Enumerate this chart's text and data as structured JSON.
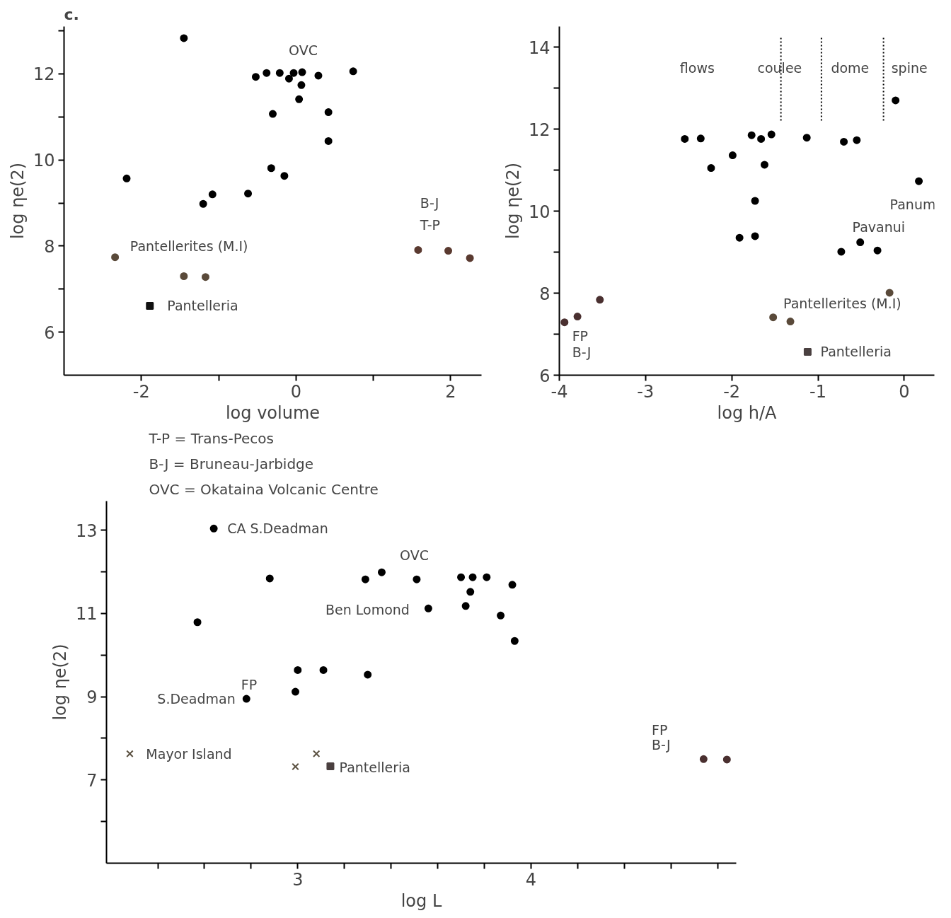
{
  "chart_data": [
    {
      "type": "scatter",
      "title": "c.",
      "xlabel": "log volume",
      "ylabel": "log ηe(2)",
      "grid": false,
      "xlim": [
        -3,
        2.4
      ],
      "ylim": [
        5,
        13.1
      ],
      "xticks": [
        -2,
        {
          "value": -1,
          "label": null
        },
        0,
        {
          "value": 1,
          "label": null
        },
        2
      ],
      "yticks": [
        6,
        {
          "value": 7,
          "label": null
        },
        8,
        {
          "value": 9,
          "label": null
        },
        10,
        {
          "value": 11,
          "label": null
        },
        12,
        {
          "value": 13,
          "label": null
        }
      ],
      "series": [
        {
          "color": "#000000",
          "marker": "circle",
          "x": [
            -1.45,
            -0.52,
            -0.38,
            -0.21,
            -0.09,
            -0.03,
            0.08,
            0.07,
            0.29,
            0.74,
            0.04,
            -0.3,
            0.42,
            0.42,
            -2.19,
            -0.32,
            -0.15,
            -1.08,
            -1.2,
            -0.62
          ],
          "values": [
            12.83,
            11.93,
            12.02,
            12.02,
            11.89,
            12.02,
            12.04,
            11.74,
            11.96,
            12.06,
            11.41,
            11.07,
            11.11,
            10.44,
            9.57,
            9.81,
            9.63,
            9.2,
            8.98,
            9.22
          ]
        },
        {
          "color": "#5a4a3a",
          "marker": "circle",
          "x": [
            -2.34,
            -1.45,
            -1.17
          ],
          "values": [
            7.74,
            7.3,
            7.28
          ]
        },
        {
          "color": "#111111",
          "marker": "square",
          "x": [
            -1.89
          ],
          "values": [
            6.61
          ]
        },
        {
          "color": "#5a3a30",
          "marker": "circle",
          "x": [
            1.58,
            1.97,
            2.25
          ],
          "values": [
            7.91,
            7.89,
            7.72
          ]
        }
      ],
      "annotations": [
        "OVC",
        "Pantellerites (M.I)",
        "Pantelleria",
        "B-J",
        "T-P"
      ]
    },
    {
      "type": "scatter",
      "xlabel": "log h/A",
      "ylabel": "log ηe(2)",
      "grid": false,
      "xlim": [
        -4,
        0.35
      ],
      "ylim": [
        6,
        14.5
      ],
      "xticks": [
        -4,
        -3,
        -2,
        -1,
        0
      ],
      "yticks": [
        6,
        {
          "value": 7,
          "label": null
        },
        8,
        {
          "value": 9,
          "label": null
        },
        10,
        {
          "value": 11,
          "label": null
        },
        12,
        {
          "value": 13,
          "label": null
        },
        14
      ],
      "ref_lines": [
        {
          "axis": "x",
          "value": -1.43,
          "label": null,
          "line_style": "dotted"
        },
        {
          "axis": "x",
          "value": -0.96,
          "label": null,
          "line_style": "dotted"
        },
        {
          "axis": "x",
          "value": -0.24,
          "label": null,
          "line_style": "dotted"
        }
      ],
      "series": [
        {
          "color": "#000000",
          "marker": "circle",
          "x": [
            -0.1,
            -2.545,
            -2.36,
            -1.77,
            -1.66,
            -1.54,
            -1.13,
            -0.7,
            -0.55,
            -1.99,
            -2.24,
            -1.62,
            0.17,
            -1.73,
            -1.91,
            -1.73,
            -0.73,
            -0.51,
            -0.31
          ],
          "values": [
            12.7,
            11.76,
            11.77,
            11.85,
            11.76,
            11.87,
            11.79,
            11.69,
            11.73,
            11.36,
            11.05,
            11.13,
            10.73,
            10.25,
            9.35,
            9.39,
            9.01,
            9.24,
            9.04
          ]
        },
        {
          "color": "#5a4a3a",
          "marker": "circle",
          "x": [
            -0.17,
            -1.52,
            -1.32
          ],
          "values": [
            8.01,
            7.41,
            7.31
          ]
        },
        {
          "color": "#4a4040",
          "marker": "square",
          "x": [
            -1.12
          ],
          "values": [
            6.57
          ]
        },
        {
          "color": "#4a3030",
          "marker": "circle",
          "x": [
            -3.94,
            -3.79,
            -3.53
          ],
          "values": [
            7.29,
            7.43,
            7.84
          ]
        }
      ],
      "annotations": [
        "flows",
        "coulee",
        "dome",
        "spine",
        "Panum",
        "Pavanui",
        "Pantellerites (M.I)",
        "Pantelleria",
        "FP",
        "B-J"
      ]
    },
    {
      "type": "scatter",
      "xlabel": "log L",
      "ylabel": "log ηe(2)",
      "grid": false,
      "xlim": [
        2.18,
        4.88
      ],
      "ylim": [
        5,
        13.7
      ],
      "xticks": [
        {
          "value": 2.4,
          "label": null
        },
        {
          "value": 2.6,
          "label": null
        },
        {
          "value": 2.8,
          "label": null
        },
        3,
        {
          "value": 3.2,
          "label": null
        },
        {
          "value": 3.4,
          "label": null
        },
        {
          "value": 3.6,
          "label": null
        },
        {
          "value": 3.8,
          "label": null
        },
        4,
        {
          "value": 4.2,
          "label": null
        },
        {
          "value": 4.4,
          "label": null
        },
        {
          "value": 4.6,
          "label": null
        },
        {
          "value": 4.8,
          "label": null
        }
      ],
      "yticks": [
        {
          "value": 6,
          "label": null
        },
        7,
        {
          "value": 8,
          "label": null
        },
        9,
        {
          "value": 10,
          "label": null
        },
        11,
        {
          "value": 12,
          "label": null
        },
        13
      ],
      "series": [
        {
          "color": "#000000",
          "marker": "circle",
          "x": [
            2.64,
            2.88,
            3.29,
            3.36,
            3.51,
            3.7,
            3.75,
            3.81,
            3.92,
            3.74,
            3.72,
            3.87,
            3.56,
            2.57,
            3.93,
            3.0,
            3.11,
            3.3,
            2.99,
            2.78
          ],
          "values": [
            13.04,
            11.84,
            11.82,
            11.99,
            11.82,
            11.87,
            11.87,
            11.87,
            11.69,
            11.52,
            11.18,
            10.95,
            11.12,
            10.79,
            10.34,
            9.64,
            9.64,
            9.53,
            9.12,
            8.95
          ]
        },
        {
          "color": "#5a5040",
          "marker": "cross",
          "x": [
            2.28,
            3.08,
            2.99
          ],
          "values": [
            7.63,
            7.63,
            7.32
          ]
        },
        {
          "color": "#4a4040",
          "marker": "square",
          "x": [
            3.14
          ],
          "values": [
            7.33
          ]
        },
        {
          "color": "#4a3030",
          "marker": "circle",
          "x": [
            4.74,
            4.84
          ],
          "values": [
            7.5,
            7.49
          ]
        }
      ],
      "annotations": [
        "T-P = Trans-Pecos",
        "B-J = Bruneau-Jarbidge",
        "OVC = Okataina Volcanic Centre",
        "CA S.Deadman",
        "OVC",
        "Ben Lomond",
        "FP",
        "S.Deadman",
        "Mayor Island",
        "Pantelleria",
        "FP",
        "B-J"
      ]
    }
  ]
}
